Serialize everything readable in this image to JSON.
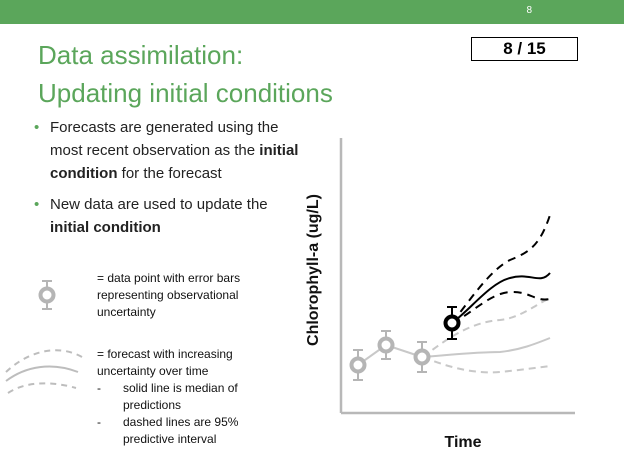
{
  "header": {
    "slide_number": "8",
    "counter": "8 / 15"
  },
  "title": {
    "line1": "Data assimilation:",
    "line2": "Updating initial conditions"
  },
  "bullets": [
    {
      "pre": "Forecasts are generated using the most recent observation as the ",
      "bold": "initial condition",
      "post": " for the forecast"
    },
    {
      "pre": "New data are used to update the ",
      "bold": "initial condition",
      "post": ""
    }
  ],
  "legend": {
    "point_text": "= data point with error bars representing observational uncertainty",
    "forecast_text": "= forecast with increasing uncertainty over time",
    "items": [
      {
        "dash": "-",
        "text": "solid line is median of predictions"
      },
      {
        "dash": "-",
        "text": "dashed lines are 95% predictive interval"
      }
    ]
  },
  "chart": {
    "ylabel": "Chlorophyll-a (ug/L)",
    "xlabel": "Time",
    "colors": {
      "observed": "#b5b5b5",
      "current": "#000000",
      "old_forecast": "#c8c8c8"
    }
  }
}
